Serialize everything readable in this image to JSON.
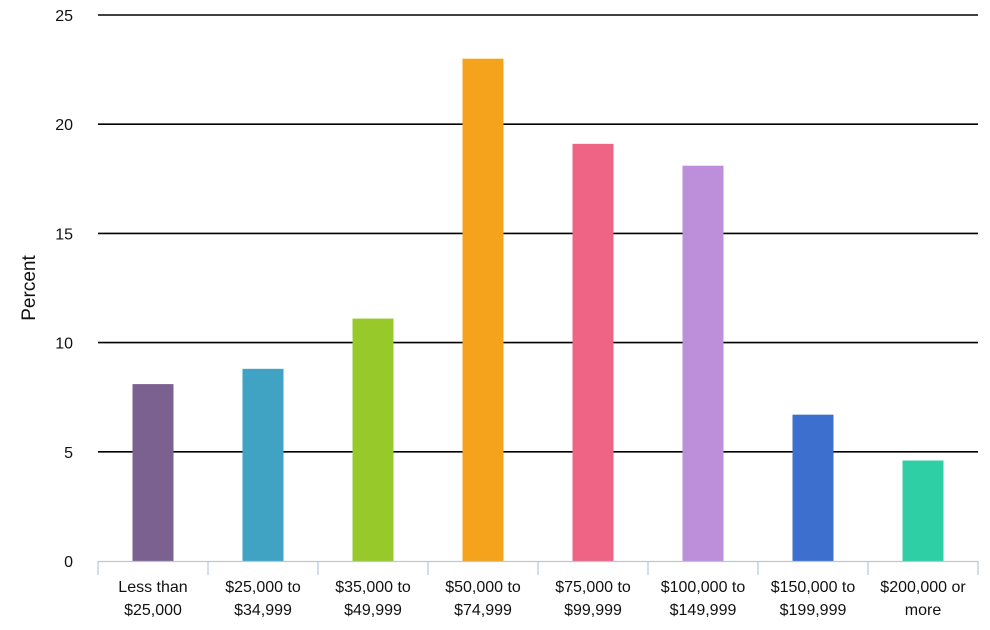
{
  "chart_data": {
    "type": "bar",
    "ylabel": "Percent",
    "xlabel": "",
    "ylim": [
      0,
      25
    ],
    "yticks": [
      "0",
      "5",
      "10",
      "15",
      "20",
      "25"
    ],
    "grid": true,
    "categories": [
      [
        "Less than",
        "$25,000"
      ],
      [
        "$25,000 to",
        "$34,999"
      ],
      [
        "$35,000 to",
        "$49,999"
      ],
      [
        "$50,000 to",
        "$74,999"
      ],
      [
        "$75,000 to",
        "$99,999"
      ],
      [
        "$100,000 to",
        "$149,999"
      ],
      [
        "$150,000 to",
        "$199,999"
      ],
      [
        "$200,000 or",
        "more"
      ]
    ],
    "values": [
      8.1,
      8.8,
      11.1,
      23.0,
      19.1,
      18.1,
      6.7,
      4.6
    ],
    "colors": [
      "#7b6190",
      "#41a3c4",
      "#97c92b",
      "#f5a31d",
      "#ef6384",
      "#bd8fda",
      "#3d6fce",
      "#2ecfa5"
    ]
  }
}
